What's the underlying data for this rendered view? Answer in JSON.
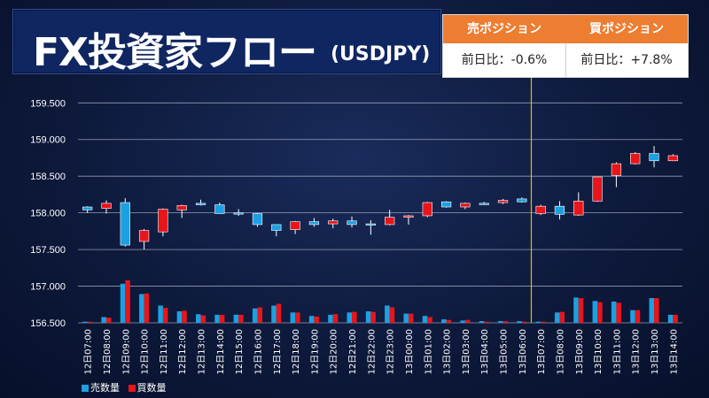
{
  "header": {
    "title_main": "FX投資家フロー",
    "title_sub": "(USDJPY)"
  },
  "positions": {
    "sell": {
      "label": "売ポジション",
      "value": "前日比：-0.6%"
    },
    "buy": {
      "label": "買ポジション",
      "value": "前日比：+7.8%"
    }
  },
  "colors": {
    "sell": "#1ba1e2",
    "buy": "#e8151b",
    "grid": "#a9b3c9",
    "divider": "#f0b400",
    "accent": "#ed7d31"
  },
  "chart_data": {
    "type": "candlestick+bar",
    "ylim": [
      156.5,
      159.6
    ],
    "yticks": [
      "159.500",
      "159.000",
      "158.500",
      "158.000",
      "157.500",
      "157.000",
      "156.500"
    ],
    "categories": [
      "12日07:00",
      "12日08:00",
      "12日09:00",
      "12日10:00",
      "12日11:00",
      "12日12:00",
      "12日13:00",
      "12日14:00",
      "12日15:00",
      "12日16:00",
      "12日17:00",
      "12日18:00",
      "12日19:00",
      "12日20:00",
      "12日21:00",
      "12日22:00",
      "12日23:00",
      "13日00:00",
      "13日01:00",
      "13日02:00",
      "13日03:00",
      "13日04:00",
      "13日05:00",
      "13日06:00",
      "13日07:00",
      "13日08:00",
      "13日09:00",
      "13日10:00",
      "13日11:00",
      "13日12:00",
      "13日13:00",
      "13日14:00"
    ],
    "divider_after_category": "13日06:00",
    "candles": [
      {
        "side": "sell",
        "open": 158.08,
        "close": 158.04,
        "high": 158.09,
        "low": 158.0
      },
      {
        "side": "buy",
        "open": 158.06,
        "close": 158.13,
        "high": 158.17,
        "low": 157.99
      },
      {
        "side": "sell",
        "open": 158.14,
        "close": 157.56,
        "high": 158.2,
        "low": 157.54
      },
      {
        "side": "buy",
        "open": 157.61,
        "close": 157.76,
        "high": 157.78,
        "low": 157.5
      },
      {
        "side": "buy",
        "open": 157.74,
        "close": 158.05,
        "high": 158.06,
        "low": 157.68
      },
      {
        "side": "buy",
        "open": 158.04,
        "close": 158.1,
        "high": 158.11,
        "low": 157.93
      },
      {
        "side": "sell",
        "open": 158.13,
        "close": 158.11,
        "high": 158.18,
        "low": 158.1
      },
      {
        "side": "sell",
        "open": 158.11,
        "close": 157.99,
        "high": 158.14,
        "low": 157.99
      },
      {
        "side": "sell",
        "open": 158.0,
        "close": 157.99,
        "high": 158.05,
        "low": 157.96
      },
      {
        "side": "sell",
        "open": 157.99,
        "close": 157.84,
        "high": 158.0,
        "low": 157.81
      },
      {
        "side": "sell",
        "open": 157.84,
        "close": 157.76,
        "high": 157.84,
        "low": 157.68
      },
      {
        "side": "buy",
        "open": 157.77,
        "close": 157.88,
        "high": 157.89,
        "low": 157.71
      },
      {
        "side": "sell",
        "open": 157.88,
        "close": 157.84,
        "high": 157.93,
        "low": 157.81
      },
      {
        "side": "buy",
        "open": 157.85,
        "close": 157.89,
        "high": 157.92,
        "low": 157.79
      },
      {
        "side": "sell",
        "open": 157.89,
        "close": 157.84,
        "high": 157.95,
        "low": 157.8
      },
      {
        "side": "sell",
        "open": 157.85,
        "close": 157.84,
        "high": 157.9,
        "low": 157.7
      },
      {
        "side": "buy",
        "open": 157.84,
        "close": 157.94,
        "high": 158.04,
        "low": 157.83
      },
      {
        "side": "buy",
        "open": 157.94,
        "close": 157.96,
        "high": 157.97,
        "low": 157.84
      },
      {
        "side": "buy",
        "open": 157.96,
        "close": 158.14,
        "high": 158.15,
        "low": 157.94
      },
      {
        "side": "sell",
        "open": 158.15,
        "close": 158.08,
        "high": 158.16,
        "low": 158.07
      },
      {
        "side": "buy",
        "open": 158.08,
        "close": 158.13,
        "high": 158.14,
        "low": 158.05
      },
      {
        "side": "sell",
        "open": 158.13,
        "close": 158.12,
        "high": 158.15,
        "low": 158.11
      },
      {
        "side": "buy",
        "open": 158.14,
        "close": 158.17,
        "high": 158.19,
        "low": 158.12
      },
      {
        "side": "sell",
        "open": 158.19,
        "close": 158.15,
        "high": 158.21,
        "low": 158.14
      },
      {
        "side": "buy",
        "open": 157.99,
        "close": 158.09,
        "high": 158.11,
        "low": 157.97
      },
      {
        "side": "sell",
        "open": 158.09,
        "close": 157.98,
        "high": 158.16,
        "low": 157.91
      },
      {
        "side": "buy",
        "open": 157.97,
        "close": 158.16,
        "high": 158.28,
        "low": 157.96
      },
      {
        "side": "buy",
        "open": 158.16,
        "close": 158.49,
        "high": 158.49,
        "low": 158.15
      },
      {
        "side": "buy",
        "open": 158.51,
        "close": 158.67,
        "high": 158.69,
        "low": 158.35
      },
      {
        "side": "buy",
        "open": 158.67,
        "close": 158.81,
        "high": 158.83,
        "low": 158.66
      },
      {
        "side": "sell",
        "open": 158.81,
        "close": 158.71,
        "high": 158.91,
        "low": 158.62
      },
      {
        "side": "buy",
        "open": 158.71,
        "close": 158.78,
        "high": 158.8,
        "low": 158.71
      }
    ],
    "volume": {
      "ylim": [
        0,
        100
      ],
      "series": [
        {
          "name": "売数量",
          "values": [
            2,
            10,
            68,
            50,
            30,
            20,
            15,
            14,
            14,
            25,
            30,
            18,
            12,
            14,
            18,
            20,
            30,
            16,
            12,
            6,
            4,
            3,
            3,
            3,
            2,
            18,
            44,
            38,
            37,
            22,
            43,
            14
          ]
        },
        {
          "name": "買数量",
          "values": [
            2,
            9,
            74,
            51,
            26,
            21,
            13,
            14,
            14,
            27,
            33,
            18,
            11,
            15,
            19,
            19,
            27,
            16,
            10,
            5,
            5,
            2,
            3,
            2,
            2,
            19,
            43,
            36,
            35,
            22,
            43,
            14
          ]
        }
      ]
    },
    "legend": [
      {
        "label": "売数量",
        "color_key": "sell"
      },
      {
        "label": "買数量",
        "color_key": "buy"
      }
    ]
  }
}
